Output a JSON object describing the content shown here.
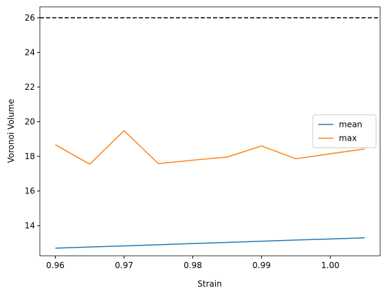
{
  "chart_data": {
    "type": "line",
    "xlabel": "Strain",
    "ylabel": "Voronoi Volume",
    "x": [
      0.96,
      0.965,
      0.97,
      0.975,
      0.98,
      0.985,
      0.99,
      0.995,
      1.0,
      1.005
    ],
    "series": [
      {
        "name": "mean",
        "color": "#1f77b4",
        "values": [
          12.7,
          12.77,
          12.83,
          12.9,
          12.97,
          13.03,
          13.1,
          13.17,
          13.23,
          13.3
        ]
      },
      {
        "name": "max",
        "color": "#ff7f0e",
        "values": [
          18.67,
          17.55,
          19.48,
          17.58,
          17.78,
          17.96,
          18.6,
          17.86,
          18.15,
          18.43
        ]
      }
    ],
    "hline": {
      "value": 26,
      "color": "#000000",
      "style": "dashed"
    },
    "xlim": [
      0.95775,
      1.00725
    ],
    "xticks": [
      0.96,
      0.97,
      0.98,
      0.99,
      {
        "value": 1.0,
        "label": "1.00"
      }
    ],
    "ylim": [
      12.26,
      26.63
    ],
    "yticks": [
      14,
      16,
      18,
      20,
      22,
      24,
      26
    ],
    "legend": "center right",
    "grid": false
  }
}
